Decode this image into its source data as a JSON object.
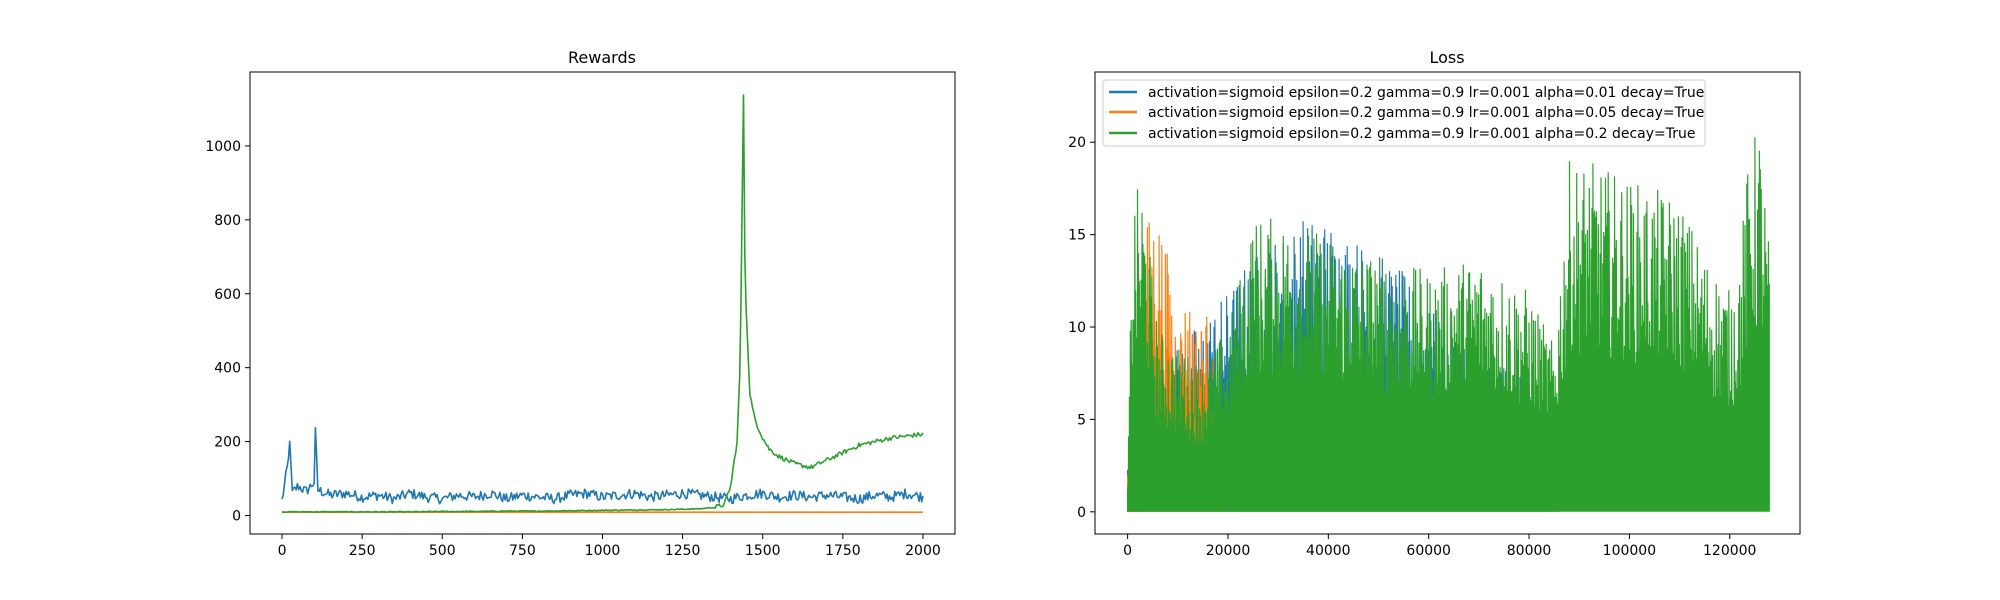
{
  "colors": {
    "blue": "#1f77b4",
    "orange": "#ff7f0e",
    "green": "#2ca02c",
    "axes": "#000000",
    "legend_border": "#cccccc"
  },
  "chart_data": [
    {
      "type": "line",
      "title": "Rewards",
      "xlabel": "",
      "ylabel": "",
      "xlim": [
        -100,
        2100
      ],
      "ylim": [
        -50,
        1200
      ],
      "xticks": [
        0,
        250,
        500,
        750,
        1000,
        1250,
        1500,
        1750,
        2000
      ],
      "xtick_labels": [
        "0",
        "250",
        "500",
        "750",
        "1000",
        "1250",
        "1500",
        "1750",
        "2000"
      ],
      "yticks": [
        0,
        200,
        400,
        600,
        800,
        1000
      ],
      "ytick_labels": [
        "0",
        "200",
        "400",
        "600",
        "800",
        "1000"
      ],
      "grid": false,
      "legend": false,
      "series": [
        {
          "color": "blue",
          "x": [
            0,
            20,
            25,
            30,
            50,
            75,
            100,
            105,
            110,
            150,
            200,
            250,
            300,
            350,
            400,
            450,
            500,
            550,
            600,
            650,
            700,
            750,
            800,
            850,
            900,
            950,
            1000,
            1050,
            1100,
            1150,
            1200,
            1250,
            1300,
            1350,
            1400,
            1450,
            1500,
            1550,
            1600,
            1650,
            1700,
            1750,
            1800,
            1850,
            1900,
            1950,
            2000
          ],
          "y": [
            40,
            150,
            225,
            60,
            80,
            65,
            90,
            260,
            70,
            55,
            60,
            50,
            55,
            45,
            60,
            50,
            45,
            55,
            50,
            60,
            45,
            55,
            50,
            45,
            55,
            60,
            50,
            55,
            60,
            50,
            55,
            60,
            55,
            50,
            45,
            55,
            60,
            50,
            55,
            50,
            55,
            50,
            45,
            55,
            50,
            60,
            50
          ]
        },
        {
          "color": "orange",
          "x": [
            0,
            250,
            500,
            750,
            1000,
            1250,
            1500,
            1750,
            2000
          ],
          "y": [
            9,
            9,
            9,
            9,
            9,
            9,
            9,
            9,
            9
          ]
        },
        {
          "color": "green",
          "x": [
            0,
            100,
            200,
            300,
            400,
            500,
            600,
            700,
            800,
            900,
            1000,
            1100,
            1200,
            1300,
            1350,
            1380,
            1400,
            1420,
            1430,
            1440,
            1445,
            1450,
            1455,
            1460,
            1470,
            1480,
            1500,
            1520,
            1550,
            1600,
            1650,
            1700,
            1750,
            1800,
            1850,
            1900,
            1950,
            2000
          ],
          "y": [
            10,
            10,
            10,
            10,
            10,
            11,
            11,
            12,
            12,
            13,
            14,
            15,
            16,
            18,
            22,
            30,
            80,
            200,
            420,
            1140,
            600,
            540,
            420,
            330,
            280,
            250,
            210,
            180,
            160,
            140,
            130,
            150,
            170,
            190,
            200,
            210,
            215,
            220
          ]
        }
      ]
    },
    {
      "type": "line",
      "title": "Loss",
      "xlabel": "",
      "ylabel": "",
      "xlim": [
        -6500,
        134000
      ],
      "ylim": [
        -1.2,
        23.8
      ],
      "xticks": [
        0,
        20000,
        40000,
        60000,
        80000,
        100000,
        120000
      ],
      "xtick_labels": [
        "0",
        "20000",
        "40000",
        "60000",
        "80000",
        "100000",
        "120000"
      ],
      "yticks": [
        0,
        5,
        10,
        15,
        20
      ],
      "ytick_labels": [
        "0",
        "5",
        "10",
        "15",
        "20"
      ],
      "grid": false,
      "legend": true,
      "legend_position": "upper-left",
      "series": [
        {
          "name": "activation=sigmoid epsilon=0.2 gamma=0.9 lr=0.001 alpha=0.01 decay=True",
          "color": "blue",
          "x_range": [
            0,
            86000
          ],
          "envelope_x": [
            0,
            10000,
            20000,
            25000,
            30000,
            35000,
            40000,
            45000,
            50000,
            55000,
            60000,
            65000,
            70000,
            75000,
            80000,
            86000
          ],
          "envelope_y": [
            3,
            9,
            12,
            14,
            15,
            16,
            16,
            15,
            14,
            13,
            11,
            10,
            9,
            8,
            7,
            6
          ]
        },
        {
          "name": "activation=sigmoid epsilon=0.2 gamma=0.9 lr=0.001 alpha=0.05 decay=True",
          "color": "orange",
          "x_range": [
            0,
            19000
          ],
          "envelope_x": [
            0,
            2000,
            4000,
            6000,
            8000,
            10000,
            12000,
            14000,
            16000,
            18000,
            19000
          ],
          "envelope_y": [
            3,
            8,
            16,
            16.5,
            14,
            10,
            12,
            10,
            11,
            6,
            4
          ]
        },
        {
          "name": "activation=sigmoid epsilon=0.2 gamma=0.9 lr=0.001 alpha=0.2 decay=True",
          "color": "green",
          "x_range": [
            0,
            128000
          ],
          "envelope_x": [
            0,
            1000,
            3000,
            6000,
            10000,
            15000,
            20000,
            25000,
            30000,
            40000,
            50000,
            60000,
            70000,
            80000,
            85000,
            88000,
            92000,
            100000,
            110000,
            115000,
            120000,
            122000,
            124000,
            126000,
            128000
          ],
          "envelope_y": [
            2,
            17,
            18,
            10,
            9,
            8,
            10,
            16,
            16,
            15,
            14,
            13,
            14,
            12,
            9,
            19,
            19,
            18,
            17,
            14,
            12,
            14,
            20,
            21,
            14
          ]
        }
      ]
    }
  ]
}
